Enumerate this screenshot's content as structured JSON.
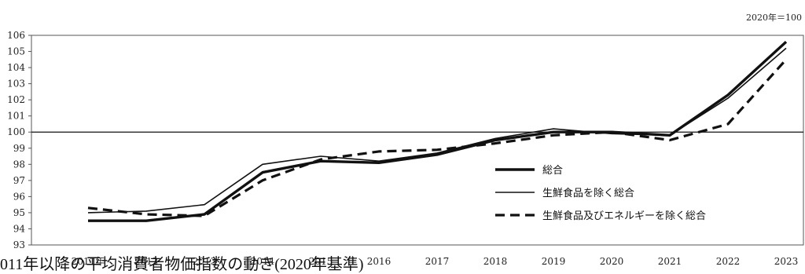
{
  "chart_data": {
    "type": "line",
    "unit_note": "2020年＝100",
    "x": [
      "2011",
      "2012",
      "2013",
      "2014",
      "2015",
      "2016",
      "2017",
      "2018",
      "2019",
      "2020",
      "2021",
      "2022",
      "2023"
    ],
    "x_tick_labels": [
      "2011年",
      "2012",
      "2013",
      "2014",
      "2015",
      "2016",
      "2017",
      "2018",
      "2019",
      "2020",
      "2021",
      "2022",
      "2023"
    ],
    "ylim": [
      93,
      106
    ],
    "y_ticks": [
      93,
      94,
      95,
      96,
      97,
      98,
      99,
      100,
      101,
      102,
      103,
      104,
      105,
      106
    ],
    "reference_line": 100,
    "grid": false,
    "legend_position": "bottom-right",
    "series": [
      {
        "name": "総合",
        "style": "thick",
        "values": [
          94.5,
          94.5,
          94.9,
          97.5,
          98.2,
          98.1,
          98.6,
          99.5,
          100.0,
          100.0,
          99.8,
          102.3,
          105.6
        ]
      },
      {
        "name": "生鮮食品を除く総合",
        "style": "thin",
        "values": [
          95.0,
          95.1,
          95.5,
          98.0,
          98.5,
          98.2,
          98.7,
          99.6,
          100.2,
          99.9,
          99.8,
          102.1,
          105.2
        ]
      },
      {
        "name": "生鮮食品及びエネルギーを除く総合",
        "style": "dashed",
        "values": [
          95.3,
          94.9,
          94.8,
          97.0,
          98.3,
          98.8,
          98.9,
          99.3,
          99.8,
          100.0,
          99.5,
          100.5,
          104.5
        ]
      }
    ]
  },
  "caption": "011年以降の平均消費者物価指数の動き(2020年基準)"
}
